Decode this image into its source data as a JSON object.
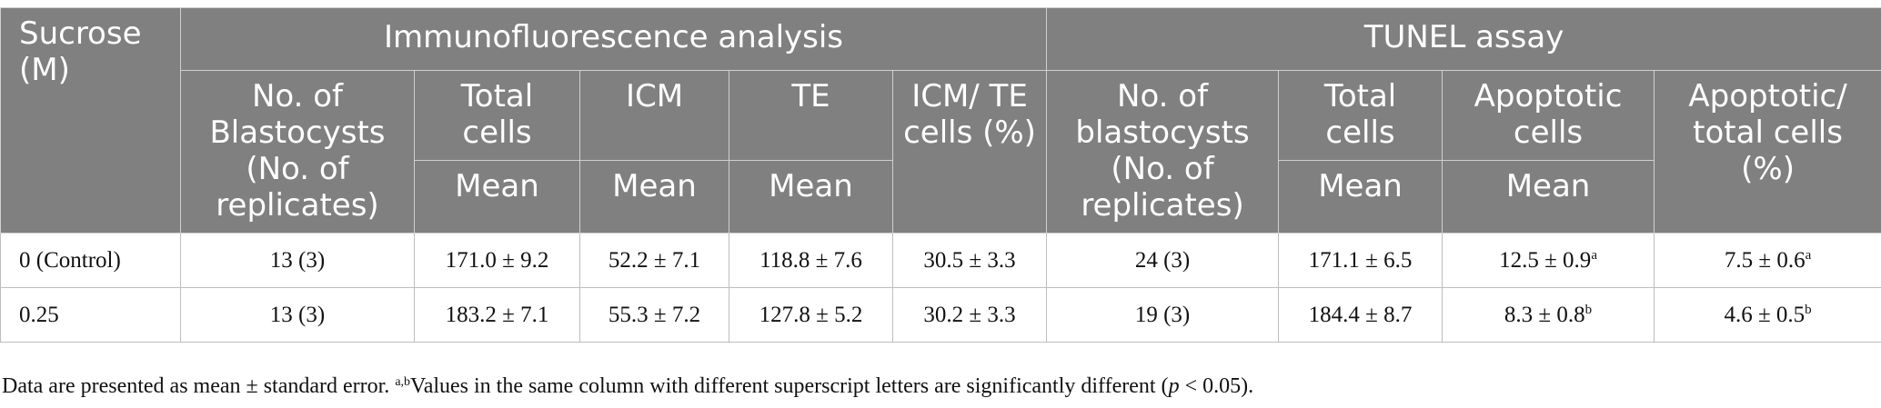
{
  "headers": {
    "sucrose": "Sucrose (M)",
    "group_if": "Immunofluorescence analysis",
    "group_tunel": "TUNEL assay",
    "if_blast": "No. of Blastocysts (No. of replicates)",
    "if_total": "Total cells",
    "if_icm": "ICM",
    "if_te": "TE",
    "if_ratio": "ICM/ TE cells (%)",
    "tu_blast": "No. of blastocysts (No. of replicates)",
    "tu_total": "Total cells",
    "tu_apop": "Apoptotic cells",
    "tu_ratio": "Apoptotic/ total cells (%)",
    "mean": "Mean"
  },
  "rows": [
    {
      "sucrose": "0 (Control)",
      "if_blast": "13 (3)",
      "if_total": "171.0 ± 9.2",
      "icm": "52.2 ± 7.1",
      "te": "118.8 ± 7.6",
      "ratio": "30.5 ± 3.3",
      "tu_blast": "24 (3)",
      "tu_total": "171.1 ± 6.5",
      "apop": "12.5 ± 0.9",
      "apop_sup": "a",
      "apop_ratio": "7.5 ± 0.6",
      "apop_ratio_sup": "a"
    },
    {
      "sucrose": "0.25",
      "if_blast": "13 (3)",
      "if_total": "183.2 ± 7.1",
      "icm": "55.3 ± 7.2",
      "te": "127.8 ± 5.2",
      "ratio": "30.2 ± 3.3",
      "tu_blast": "19 (3)",
      "tu_total": "184.4 ± 8.7",
      "apop": "8.3 ± 0.8",
      "apop_sup": "b",
      "apop_ratio": "4.6 ± 0.5",
      "apop_ratio_sup": "b"
    }
  ],
  "footnote": {
    "part1": "Data are presented as mean ± standard error. ",
    "sup": "a,b",
    "part2": "Values in the same column with different superscript letters are significantly different (",
    "p": "p",
    "part3": " < 0.05)."
  }
}
